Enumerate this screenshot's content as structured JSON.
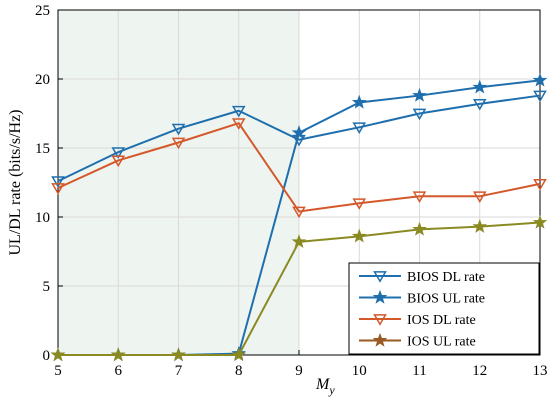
{
  "chart_data": {
    "type": "line",
    "title": "",
    "xlabel": "M",
    "xlabel_sub": "y",
    "ylabel": "UL/DL  rate  (bits/s/Hz)",
    "x": [
      5,
      6,
      7,
      8,
      9,
      10,
      11,
      12,
      13
    ],
    "xlim": [
      5,
      13
    ],
    "ylim": [
      0,
      25
    ],
    "xticks": [
      "5",
      "6",
      "7",
      "8",
      "9",
      "10",
      "11",
      "12",
      "13"
    ],
    "yticks": [
      "0",
      "5",
      "10",
      "15",
      "20",
      "25"
    ],
    "grid": true,
    "shaded_region": {
      "x_from": 5,
      "x_to": 9,
      "color": "#eef5f0"
    },
    "legend_position": "bottom-right",
    "series": [
      {
        "name": "BIOS DL rate",
        "color": "#1f6fae",
        "marker": "triangle-down",
        "values": [
          12.6,
          14.7,
          16.4,
          17.7,
          15.6,
          16.5,
          17.5,
          18.2,
          18.8
        ]
      },
      {
        "name": "BIOS UL rate",
        "color": "#1f6fae",
        "marker": "star",
        "values": [
          0.0,
          0.0,
          0.0,
          0.1,
          16.1,
          18.3,
          18.8,
          19.4,
          19.9
        ]
      },
      {
        "name": "IOS DL rate",
        "color": "#d4582a",
        "marker": "triangle-down",
        "values": [
          12.1,
          14.1,
          15.4,
          16.8,
          10.4,
          11.0,
          11.5,
          11.5,
          12.4
        ]
      },
      {
        "name": "IOS UL rate",
        "color": "#8b8a22",
        "marker": "star",
        "values": [
          0.0,
          0.0,
          0.0,
          0.0,
          8.2,
          8.6,
          9.1,
          9.3,
          9.6
        ]
      }
    ],
    "legend_entries": [
      {
        "label": "BIOS DL rate",
        "color": "#1f6fae",
        "marker": "triangle-down"
      },
      {
        "label": "BIOS UL rate",
        "color": "#1f6fae",
        "marker": "star"
      },
      {
        "label": "IOS DL rate",
        "color": "#d4582a",
        "marker": "triangle-down"
      },
      {
        "label": "IOS UL rate",
        "color": "#9a5a22",
        "marker": "star"
      }
    ]
  }
}
